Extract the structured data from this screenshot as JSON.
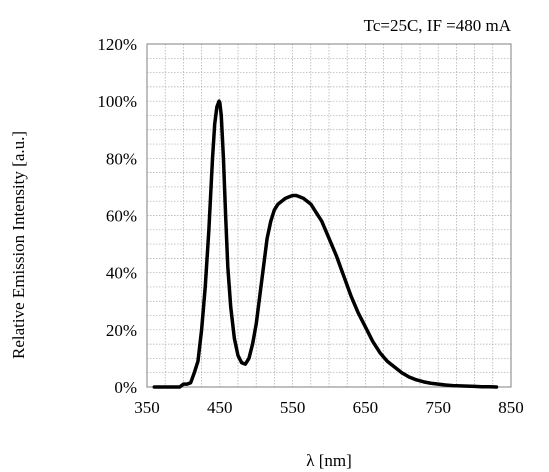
{
  "chart_data": {
    "type": "line",
    "title": "Tc=25C, IF =480 mA",
    "xlabel": "λ [nm]",
    "ylabel": "Relative Emission Intensity [a.u.]",
    "xlim": [
      350,
      850
    ],
    "ylim": [
      0,
      120
    ],
    "x_ticks": [
      350,
      450,
      550,
      650,
      750,
      850
    ],
    "x_tick_labels": [
      "350",
      "450",
      "550",
      "650",
      "750",
      "850"
    ],
    "y_ticks": [
      0,
      20,
      40,
      60,
      80,
      100,
      120
    ],
    "y_tick_labels": [
      "0%",
      "20%",
      "40%",
      "60%",
      "80%",
      "100%",
      "120%"
    ],
    "grid": true,
    "legend": "none",
    "series": [
      {
        "color": "#000000",
        "x": [
          360,
          380,
          395,
          400,
          405,
          410,
          415,
          420,
          425,
          430,
          435,
          440,
          443,
          446,
          449,
          450,
          452,
          455,
          458,
          461,
          465,
          470,
          475,
          480,
          485,
          490,
          495,
          500,
          505,
          510,
          515,
          520,
          525,
          530,
          535,
          540,
          545,
          550,
          555,
          560,
          565,
          570,
          575,
          580,
          590,
          600,
          610,
          620,
          630,
          640,
          650,
          660,
          670,
          680,
          690,
          700,
          710,
          720,
          730,
          740,
          750,
          760,
          770,
          780,
          790,
          800,
          810,
          820,
          830
        ],
        "y": [
          0,
          0,
          0,
          1,
          1,
          1.5,
          5,
          9,
          20,
          35,
          55,
          80,
          92,
          98,
          100,
          99.5,
          95,
          80,
          60,
          42,
          28,
          17,
          11,
          8.5,
          8,
          10,
          15,
          22,
          32,
          42,
          52,
          58,
          62,
          64,
          65,
          66,
          66.5,
          67,
          67,
          66.5,
          66,
          65,
          64,
          62,
          58,
          52,
          46,
          39,
          32,
          26,
          21,
          16,
          12,
          9,
          7,
          5,
          3.5,
          2.5,
          1.8,
          1.3,
          1,
          0.7,
          0.5,
          0.4,
          0.3,
          0.2,
          0.1,
          0.1,
          0
        ]
      }
    ]
  }
}
